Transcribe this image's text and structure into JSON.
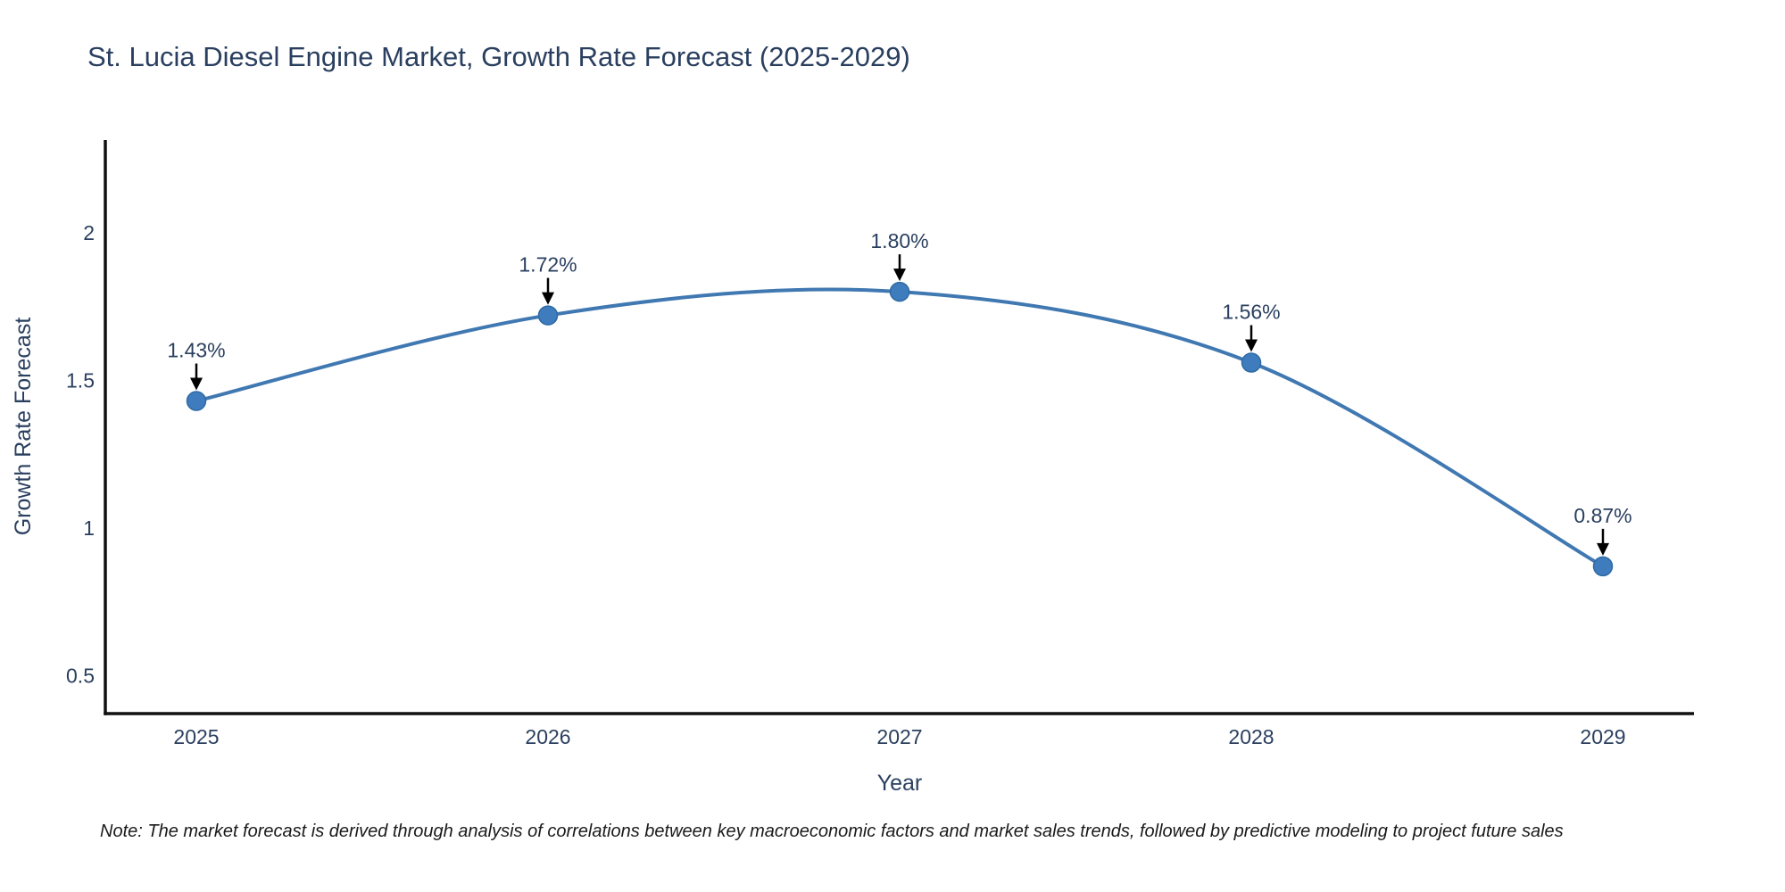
{
  "title": "St. Lucia Diesel Engine Market, Growth Rate Forecast (2025-2029)",
  "note": "Note: The market forecast is derived through analysis of correlations between key macroeconomic factors and market sales trends, followed by predictive modeling to project future sales",
  "chart_data": {
    "type": "line",
    "title": "St. Lucia Diesel Engine Market, Growth Rate Forecast (2025-2029)",
    "x": [
      "2025",
      "2026",
      "2027",
      "2028",
      "2029"
    ],
    "values": [
      1.43,
      1.72,
      1.8,
      1.56,
      0.87
    ],
    "point_labels": [
      "1.43%",
      "1.72%",
      "1.80%",
      "1.56%",
      "0.87%"
    ],
    "xlabel": "Year",
    "ylabel": "Growth Rate Forecast",
    "yticks": [
      0.5,
      1,
      1.5,
      2
    ],
    "ylim": [
      0.371,
      2.314
    ],
    "line_shape": "spline",
    "markers": true,
    "annotation_arrows": true,
    "grid": false,
    "legend": "none",
    "colors": {
      "line": "#4078b2",
      "marker_fill": "#3f7cbe",
      "marker_edge": "#2f6aa3",
      "axis_line": "#111111",
      "tick_text": "#2a3f5f",
      "axis_title_text": "#2a3f5f",
      "annotation_text": "#2a3f5f",
      "annotation_arrow": "#000000",
      "title_text": "#2a3f5f",
      "note_text": "#1a1a1a"
    }
  }
}
